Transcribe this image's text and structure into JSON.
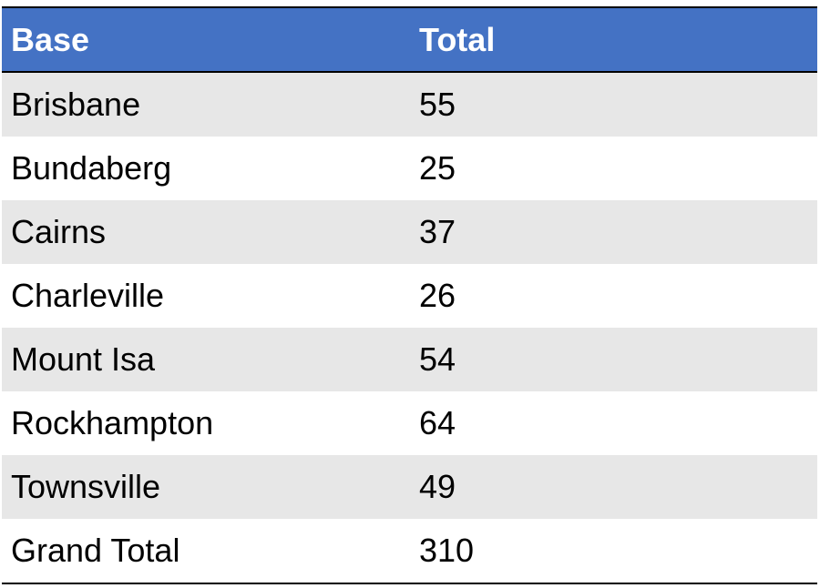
{
  "table": {
    "header": [
      "Base",
      "Total"
    ],
    "rows": [
      [
        "Brisbane",
        55
      ],
      [
        "Bundaberg",
        25
      ],
      [
        "Cairns",
        37
      ],
      [
        "Charleville",
        26
      ],
      [
        "Mount Isa",
        54
      ],
      [
        "Rockhampton",
        64
      ],
      [
        "Townsville",
        49
      ],
      [
        "Grand Total",
        310
      ]
    ]
  }
}
